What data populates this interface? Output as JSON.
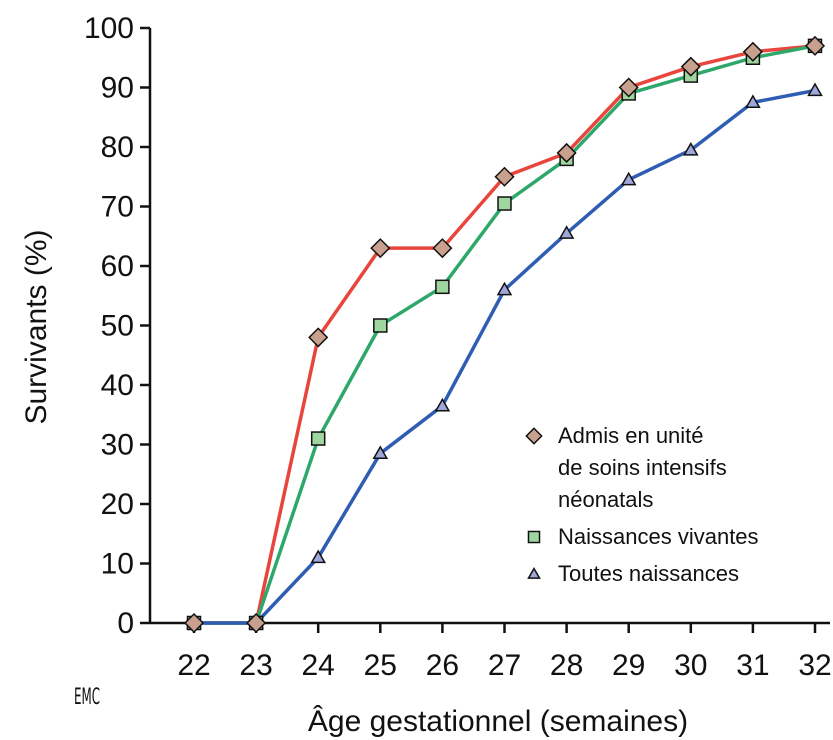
{
  "chart_data": {
    "type": "line",
    "title": "",
    "xlabel": "Âge gestationnel (semaines)",
    "ylabel": "Survivants (%)",
    "x": [
      22,
      23,
      24,
      25,
      26,
      27,
      28,
      29,
      30,
      31,
      32
    ],
    "xlim": [
      22,
      32
    ],
    "ylim": [
      0,
      100
    ],
    "yticks": [
      0,
      10,
      20,
      30,
      40,
      50,
      60,
      70,
      80,
      90,
      100
    ],
    "grid": false,
    "legend_position": "bottom-right",
    "series": [
      {
        "name": "Admis en unité de soins intensifs néonatals",
        "legend_lines": [
          "Admis en unité",
          "de soins intensifs",
          "néonatals"
        ],
        "marker": "diamond",
        "line_color": "#e8453c",
        "marker_fill": "#c9a08e",
        "values": [
          0,
          0,
          48,
          63,
          63,
          75,
          79,
          90,
          93.5,
          96,
          97
        ]
      },
      {
        "name": "Naissances vivantes",
        "legend_lines": [
          "Naissances vivantes"
        ],
        "marker": "square",
        "line_color": "#2ea86a",
        "marker_fill": "#9fd6a0",
        "values": [
          0,
          0,
          31,
          50,
          56.5,
          70.5,
          78,
          89,
          92,
          95,
          97
        ]
      },
      {
        "name": "Toutes naissances",
        "legend_lines": [
          "Toutes naissances"
        ],
        "marker": "triangle",
        "line_color": "#2f5db3",
        "marker_fill": "#9fa6d9",
        "values": [
          0,
          0,
          11,
          28.5,
          36.5,
          56,
          65.5,
          74.5,
          79.5,
          87.5,
          89.5
        ]
      }
    ]
  },
  "logo_text": "EMC"
}
